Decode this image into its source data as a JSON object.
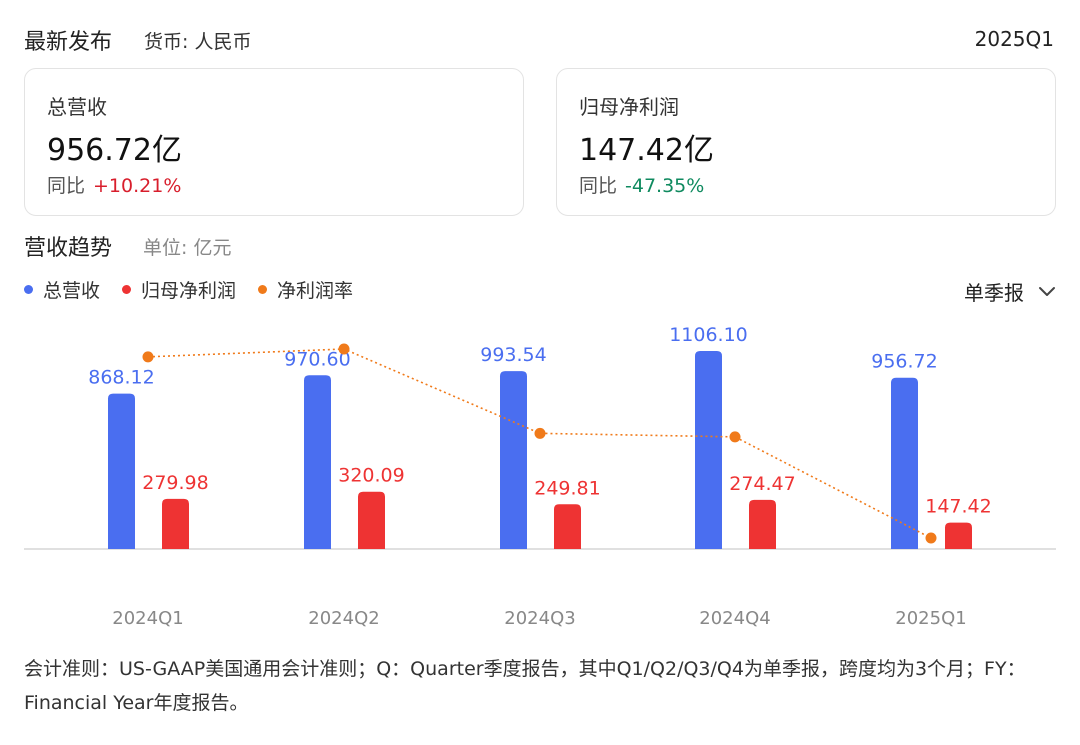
{
  "header": {
    "title": "最新发布",
    "currency": "货币: 人民币",
    "period": "2025Q1"
  },
  "cards": [
    {
      "label": "总营收",
      "value": "956.72亿",
      "yoy_label": "同比",
      "yoy_change": "+10.21%",
      "direction": "up"
    },
    {
      "label": "归母净利润",
      "value": "147.42亿",
      "yoy_label": "同比",
      "yoy_change": "-47.35%",
      "direction": "down"
    }
  ],
  "trend": {
    "title": "营收趋势",
    "unit": "单位: 亿元",
    "legend": [
      {
        "name": "总营收",
        "color": "#4a6ef0"
      },
      {
        "name": "归母净利润",
        "color": "#ee3333"
      },
      {
        "name": "净利润率",
        "color": "#f07a1a"
      }
    ],
    "period_select": "单季报"
  },
  "chart_data": {
    "type": "bar",
    "categories": [
      "2024Q1",
      "2024Q2",
      "2024Q3",
      "2024Q4",
      "2025Q1"
    ],
    "series": [
      {
        "name": "总营收",
        "values": [
          868.12,
          970.6,
          993.54,
          1106.1,
          956.72
        ],
        "color": "#4a6ef0"
      },
      {
        "name": "归母净利润",
        "values": [
          279.98,
          320.09,
          249.81,
          274.47,
          147.42
        ],
        "color": "#ee3333"
      },
      {
        "name": "净利润率",
        "type": "line",
        "values": [
          32.25,
          32.98,
          25.14,
          24.81,
          15.41
        ],
        "color": "#f07a1a"
      }
    ],
    "value_labels": {
      "总营收": [
        "868.12",
        "970.60",
        "993.54",
        "1106.10",
        "956.72"
      ],
      "归母净利润": [
        "279.98",
        "320.09",
        "249.81",
        "274.47",
        "147.42"
      ]
    },
    "ylim": [
      0,
      1106.1
    ],
    "grid": false,
    "legend_position": "top-left"
  },
  "footnote": "会计准则：US-GAAP美国通用会计准则；Q：Quarter季度报告，其中Q1/Q2/Q3/Q4为单季报，跨度均为3个月；FY：Financial Year年度报告。"
}
